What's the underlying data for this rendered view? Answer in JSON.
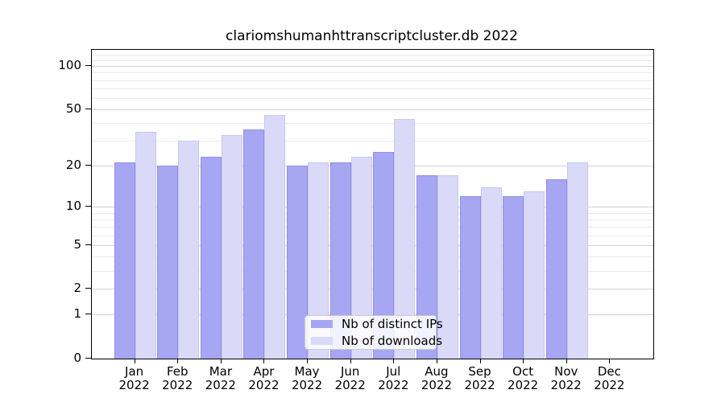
{
  "title": "clariomshumanhttranscriptcluster.db 2022",
  "chart_data": {
    "type": "bar",
    "title": "clariomshumanhttranscriptcluster.db 2022",
    "categories": [
      "Jan",
      "Feb",
      "Mar",
      "Apr",
      "May",
      "Jun",
      "Jul",
      "Aug",
      "Sep",
      "Oct",
      "Nov",
      "Dec"
    ],
    "year": "2022",
    "series": [
      {
        "name": "Nb of distinct IPs",
        "color": "#a7a6f3",
        "edge_color": "#908fe2",
        "values": [
          21,
          20,
          23,
          36,
          20,
          21,
          25,
          17,
          12,
          12,
          16,
          0
        ]
      },
      {
        "name": "Nb of downloads",
        "color": "#dadaf8",
        "edge_color": "#c7c6ef",
        "values": [
          35,
          30,
          33,
          46,
          21,
          23,
          43,
          17,
          14,
          13,
          21,
          0
        ]
      }
    ],
    "scale": "log10(value+1)",
    "ylim": [
      0,
      126
    ],
    "y_major_ticks": [
      0,
      1,
      2,
      5,
      10,
      20,
      50,
      100
    ],
    "y_tick_labels": [
      "0",
      "1",
      "2",
      "5",
      "10",
      "20",
      "50",
      "100"
    ],
    "y_minor_gridlines": [
      3,
      4,
      6,
      7,
      8,
      9,
      30,
      40,
      60,
      70,
      80,
      90,
      110,
      120
    ],
    "grid": true,
    "legend_position": "bottom-center",
    "legend_labels": [
      "Nb of distinct IPs",
      "Nb of downloads"
    ]
  }
}
